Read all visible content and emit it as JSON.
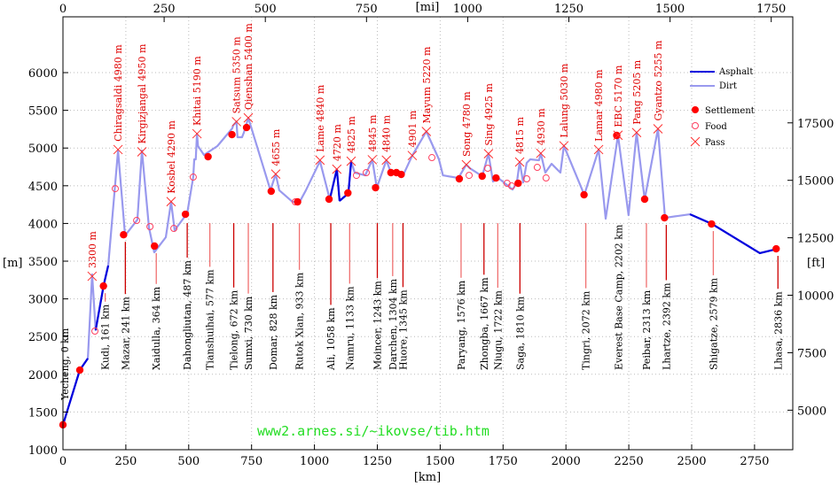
{
  "chart_data": {
    "type": "line",
    "title": "",
    "xlabel": "[km]",
    "ylabel": "[m]",
    "x2label": "[mi]",
    "y2label": "[ft]",
    "xlim": [
      0,
      2902
    ],
    "ylim": [
      1000,
      6740
    ],
    "grid": true,
    "legend_position": "top-right",
    "x_ticks": [
      0,
      250,
      500,
      750,
      1000,
      1250,
      1500,
      1750,
      2000,
      2250,
      2500,
      2750
    ],
    "y_ticks": [
      1000,
      1500,
      2000,
      2500,
      3000,
      3500,
      4000,
      4500,
      5000,
      5500,
      6000
    ],
    "x2_ticks_mi": [
      0,
      250,
      500,
      750,
      1000,
      1250,
      1500,
      1750
    ],
    "y2_ticks_ft": [
      5000,
      7500,
      10000,
      12500,
      15000,
      17500
    ],
    "legend": {
      "asphalt": "Asphalt",
      "dirt": "Dirt",
      "settlement": "Settlement",
      "food": "Food",
      "pass": "Pass"
    },
    "colors": {
      "asphalt": "#0000dd",
      "dirt": "#9999ee",
      "marker": "#ff0000",
      "town_line": "#dd3030",
      "watermark": "#22dd22"
    },
    "watermark": "www2.arnes.si/~ikovse/tib.htm",
    "profile": [
      [
        0,
        1330
      ],
      [
        67,
        2056
      ],
      [
        99,
        2210
      ],
      [
        116,
        3324
      ],
      [
        130,
        2585
      ],
      [
        162,
        3183
      ],
      [
        180,
        3441
      ],
      [
        219,
        4967
      ],
      [
        247,
        3840
      ],
      [
        296,
        4050
      ],
      [
        314,
        4967
      ],
      [
        342,
        3946
      ],
      [
        363,
        3617
      ],
      [
        409,
        3817
      ],
      [
        430,
        4286
      ],
      [
        444,
        3911
      ],
      [
        494,
        4134
      ],
      [
        518,
        4615
      ],
      [
        522,
        4850
      ],
      [
        528,
        4850
      ],
      [
        533,
        5190
      ],
      [
        537,
        5026
      ],
      [
        561,
        4908
      ],
      [
        614,
        5026
      ],
      [
        673,
        5260
      ],
      [
        677,
        5300
      ],
      [
        690,
        5350
      ],
      [
        694,
        5143
      ],
      [
        712,
        5143
      ],
      [
        719,
        5202
      ],
      [
        737,
        5400
      ],
      [
        825,
        4440
      ],
      [
        846,
        4655
      ],
      [
        860,
        4440
      ],
      [
        913,
        4286
      ],
      [
        941,
        4286
      ],
      [
        966,
        4440
      ],
      [
        1022,
        4826
      ],
      [
        1061,
        4320
      ],
      [
        1089,
        4720
      ],
      [
        1100,
        4300
      ],
      [
        1135,
        4400
      ],
      [
        1146,
        4825
      ],
      [
        1160,
        4674
      ],
      [
        1202,
        4638
      ],
      [
        1230,
        4845
      ],
      [
        1248,
        4474
      ],
      [
        1286,
        4840
      ],
      [
        1304,
        4674
      ],
      [
        1354,
        4650
      ],
      [
        1389,
        4901
      ],
      [
        1445,
        5220
      ],
      [
        1495,
        4850
      ],
      [
        1511,
        4638
      ],
      [
        1572,
        4603
      ],
      [
        1604,
        4780
      ],
      [
        1618,
        4732
      ],
      [
        1667,
        4627
      ],
      [
        1692,
        4925
      ],
      [
        1710,
        4556
      ],
      [
        1731,
        4603
      ],
      [
        1788,
        4450
      ],
      [
        1805,
        4544
      ],
      [
        1816,
        4815
      ],
      [
        1830,
        4544
      ],
      [
        1844,
        4803
      ],
      [
        1858,
        4850
      ],
      [
        1893,
        4838
      ],
      [
        1900,
        4930
      ],
      [
        1918,
        4674
      ],
      [
        1943,
        4791
      ],
      [
        1978,
        4674
      ],
      [
        1992,
        5030
      ],
      [
        2073,
        4380
      ],
      [
        2130,
        4980
      ],
      [
        2158,
        4063
      ],
      [
        2207,
        5170
      ],
      [
        2249,
        4110
      ],
      [
        2281,
        5205
      ],
      [
        2313,
        4320
      ],
      [
        2366,
        5255
      ],
      [
        2394,
        4075
      ],
      [
        2493,
        4122
      ],
      [
        2581,
        3993
      ],
      [
        2771,
        3606
      ],
      [
        2842,
        3664
      ]
    ],
    "asphalt_segments": [
      [
        0,
        100
      ],
      [
        130,
        182
      ],
      [
        1061,
        1100
      ],
      [
        1100,
        1146
      ],
      [
        1270,
        1300
      ],
      [
        2493,
        2842
      ]
    ],
    "settlements": [
      [
        0,
        1330
      ],
      [
        67,
        2056
      ],
      [
        161,
        3170
      ],
      [
        241,
        3850
      ],
      [
        364,
        3700
      ],
      [
        487,
        4122
      ],
      [
        577,
        4885
      ],
      [
        672,
        5178
      ],
      [
        730,
        5272
      ],
      [
        828,
        4427
      ],
      [
        933,
        4286
      ],
      [
        1058,
        4322
      ],
      [
        1133,
        4404
      ],
      [
        1243,
        4474
      ],
      [
        1304,
        4674
      ],
      [
        1326,
        4674
      ],
      [
        1345,
        4650
      ],
      [
        1576,
        4592
      ],
      [
        1667,
        4627
      ],
      [
        1722,
        4603
      ],
      [
        1810,
        4533
      ],
      [
        2072,
        4380
      ],
      [
        2202,
        5167
      ],
      [
        2313,
        4322
      ],
      [
        2392,
        4075
      ],
      [
        2579,
        3993
      ],
      [
        2836,
        3664
      ]
    ],
    "food": [
      [
        127,
        2573
      ],
      [
        208,
        4462
      ],
      [
        293,
        4040
      ],
      [
        346,
        3958
      ],
      [
        441,
        3934
      ],
      [
        518,
        4615
      ],
      [
        924,
        4286
      ],
      [
        1167,
        4638
      ],
      [
        1206,
        4674
      ],
      [
        1467,
        4873
      ],
      [
        1615,
        4638
      ],
      [
        1689,
        4732
      ],
      [
        1766,
        4533
      ],
      [
        1784,
        4498
      ],
      [
        1844,
        4592
      ],
      [
        1886,
        4744
      ],
      [
        1921,
        4603
      ]
    ],
    "passes": [
      {
        "km": 116,
        "m": 3300,
        "label": "3300 m"
      },
      {
        "km": 219,
        "m": 4980,
        "label": "Chiragsaldi 4980 m"
      },
      {
        "km": 314,
        "m": 4950,
        "label": "Kirgizjangal 4950 m"
      },
      {
        "km": 430,
        "m": 4290,
        "label": "Kosbel 4290 m"
      },
      {
        "km": 533,
        "m": 5190,
        "label": "Khitai 5190 m"
      },
      {
        "km": 690,
        "m": 5350,
        "label": "Satsum 5350 m"
      },
      {
        "km": 737,
        "m": 5400,
        "label": "Qienshan 5400 m"
      },
      {
        "km": 846,
        "m": 4655,
        "label": "4655 m"
      },
      {
        "km": 1022,
        "m": 4840,
        "label": "Lame 4840 m"
      },
      {
        "km": 1089,
        "m": 4720,
        "label": "4720 m"
      },
      {
        "km": 1146,
        "m": 4825,
        "label": "4825 m"
      },
      {
        "km": 1230,
        "m": 4845,
        "label": "4845 m"
      },
      {
        "km": 1286,
        "m": 4840,
        "label": "4840 m"
      },
      {
        "km": 1389,
        "m": 4901,
        "label": "4901 m"
      },
      {
        "km": 1445,
        "m": 5220,
        "label": "Mayum 5220 m"
      },
      {
        "km": 1604,
        "m": 4780,
        "label": "Song 4780 m"
      },
      {
        "km": 1692,
        "m": 4925,
        "label": "Sing 4925 m"
      },
      {
        "km": 1816,
        "m": 4815,
        "label": "4815 m"
      },
      {
        "km": 1900,
        "m": 4930,
        "label": "4930 m"
      },
      {
        "km": 1992,
        "m": 5030,
        "label": "Lalung 5030 m"
      },
      {
        "km": 2130,
        "m": 4980,
        "label": "Lamar 4980 m"
      },
      {
        "km": 2207,
        "m": 5170,
        "label": "EBC 5170 m"
      },
      {
        "km": 2281,
        "m": 5205,
        "label": "Pang 5205 m"
      },
      {
        "km": 2366,
        "m": 5255,
        "label": "Gyantzo 5255 m"
      }
    ],
    "towns": [
      {
        "km": 0,
        "m": 1330,
        "label": "Yecheng, 0 km"
      },
      {
        "km": 161,
        "m": 3170,
        "label": "Kudi, 161 km"
      },
      {
        "km": 241,
        "m": 3850,
        "label": "Mazar, 241 km"
      },
      {
        "km": 364,
        "m": 3700,
        "label": "Xaidulla, 364 km"
      },
      {
        "km": 487,
        "m": 4122,
        "label": "Dahongliutan, 487 km"
      },
      {
        "km": 577,
        "m": 4885,
        "label": "Tianshuihai, 577 km"
      },
      {
        "km": 672,
        "m": 5178,
        "label": "Tielong, 672 km"
      },
      {
        "km": 730,
        "m": 5272,
        "label": "Sumxi, 730 km"
      },
      {
        "km": 828,
        "m": 4427,
        "label": "Domar, 828 km"
      },
      {
        "km": 933,
        "m": 4286,
        "label": "Rutok Xian, 933 km"
      },
      {
        "km": 1058,
        "m": 4322,
        "label": "Ali, 1058 km"
      },
      {
        "km": 1133,
        "m": 4404,
        "label": "Namru, 1133 km"
      },
      {
        "km": 1243,
        "m": 4474,
        "label": "Moincer, 1243 km"
      },
      {
        "km": 1304,
        "m": 4674,
        "label": "Darchen, 1304 km"
      },
      {
        "km": 1345,
        "m": 4650,
        "label": "Huore, 1345 km"
      },
      {
        "km": 1576,
        "m": 4592,
        "label": "Paryang, 1576 km"
      },
      {
        "km": 1667,
        "m": 4627,
        "label": "Zhongba, 1667 km"
      },
      {
        "km": 1722,
        "m": 4603,
        "label": "Niugu, 1722 km"
      },
      {
        "km": 1810,
        "m": 4533,
        "label": "Saga, 1810 km"
      },
      {
        "km": 2072,
        "m": 4380,
        "label": "Tingri, 2072 km"
      },
      {
        "km": 2202,
        "m": 5167,
        "label": "Everest Base Camp, 2202 km"
      },
      {
        "km": 2313,
        "m": 4322,
        "label": "Peibar, 2313 km"
      },
      {
        "km": 2392,
        "m": 4075,
        "label": "Lhartze, 2392 km"
      },
      {
        "km": 2579,
        "m": 3993,
        "label": "Shigatze, 2579 km"
      },
      {
        "km": 2836,
        "m": 3664,
        "label": "Lhasa, 2836 km"
      }
    ]
  }
}
